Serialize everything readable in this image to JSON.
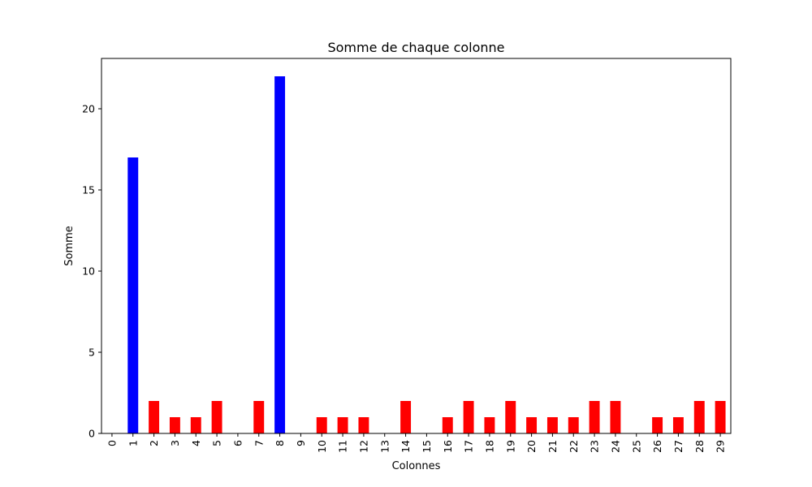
{
  "chart_data": {
    "type": "bar",
    "title": "Somme de chaque colonne",
    "xlabel": "Colonnes",
    "ylabel": "Somme",
    "categories": [
      "0",
      "1",
      "2",
      "3",
      "4",
      "5",
      "6",
      "7",
      "8",
      "9",
      "10",
      "11",
      "12",
      "13",
      "14",
      "15",
      "16",
      "17",
      "18",
      "19",
      "20",
      "21",
      "22",
      "23",
      "24",
      "25",
      "26",
      "27",
      "28",
      "29"
    ],
    "values": [
      0,
      17,
      2,
      1,
      1,
      2,
      0,
      2,
      22,
      0,
      1,
      1,
      1,
      0,
      2,
      0,
      1,
      2,
      1,
      2,
      1,
      1,
      1,
      2,
      2,
      0,
      1,
      1,
      2,
      2
    ],
    "colors": [
      "#ff0000",
      "#0000ff",
      "#ff0000",
      "#ff0000",
      "#ff0000",
      "#ff0000",
      "#ff0000",
      "#ff0000",
      "#0000ff",
      "#ff0000",
      "#ff0000",
      "#ff0000",
      "#ff0000",
      "#ff0000",
      "#ff0000",
      "#ff0000",
      "#ff0000",
      "#ff0000",
      "#ff0000",
      "#ff0000",
      "#ff0000",
      "#ff0000",
      "#ff0000",
      "#ff0000",
      "#ff0000",
      "#ff0000",
      "#ff0000",
      "#ff0000",
      "#ff0000",
      "#ff0000"
    ],
    "ylim": [
      0,
      23.1
    ],
    "yticks": [
      0,
      5,
      10,
      15,
      20
    ],
    "grid": false,
    "legend": "none"
  }
}
